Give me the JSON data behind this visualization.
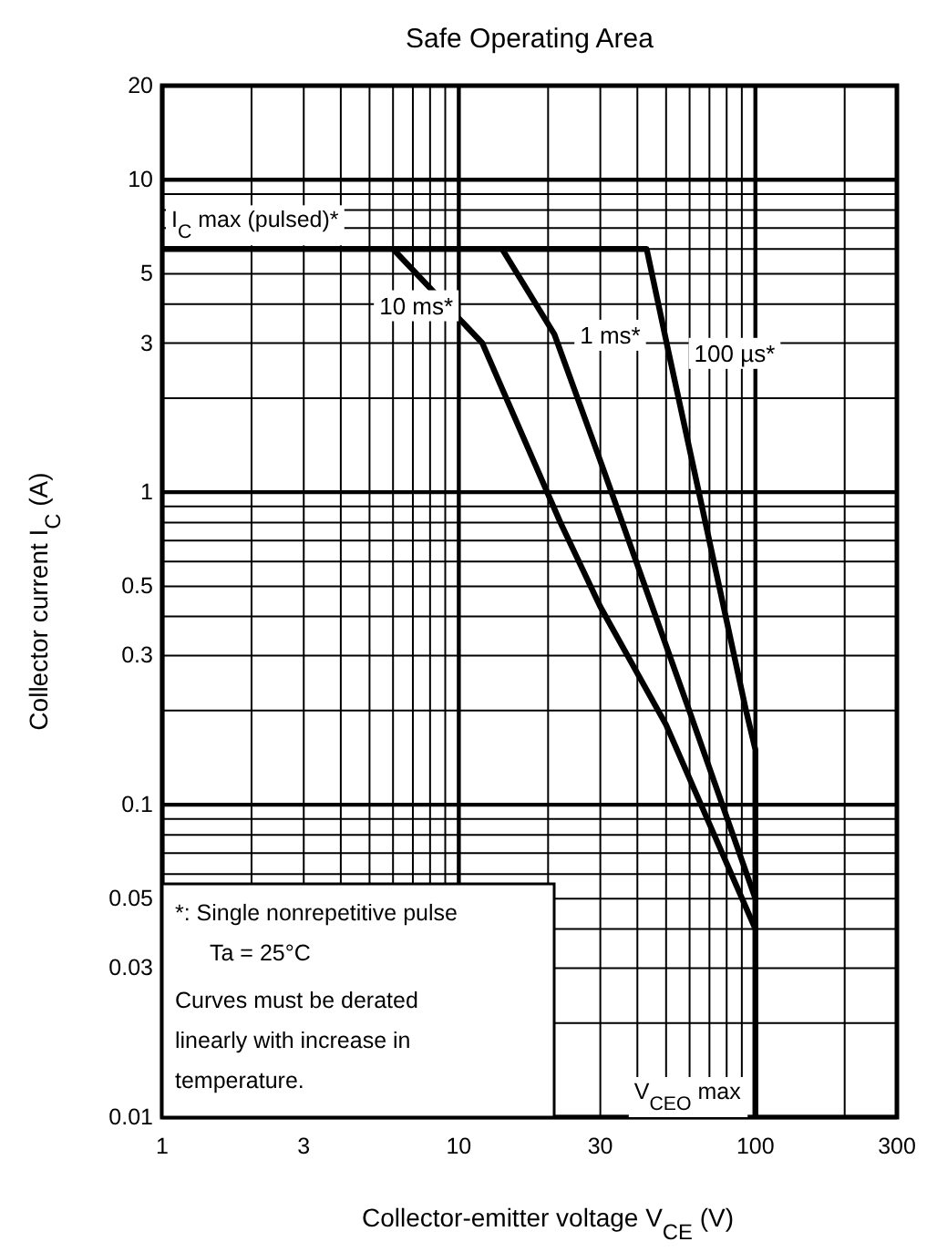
{
  "chart_data": {
    "type": "line",
    "title": "Safe Operating Area",
    "xlabel": "Collector-emitter voltage   V$_{CE}$   (V)",
    "ylabel": "Collector current   I$_{C}$   (A)",
    "log": "xy",
    "grid": true,
    "marker": "none",
    "line_style": "solid",
    "xlim": [
      1,
      300
    ],
    "ylim": [
      0.01,
      20
    ],
    "xticks": [
      1,
      3,
      10,
      30,
      100,
      300
    ],
    "yticks": [
      0.01,
      0.03,
      0.05,
      0.1,
      0.3,
      0.5,
      1,
      3,
      5,
      10,
      20
    ],
    "series": [
      {
        "name": "10 ms*",
        "color": "#000000",
        "x": [
          6,
          12,
          22,
          30,
          50,
          100
        ],
        "values": [
          6,
          3,
          0.8,
          0.43,
          0.18,
          0.04
        ]
      },
      {
        "name": "1 ms*",
        "color": "#000000",
        "x": [
          14,
          21,
          30,
          61,
          100
        ],
        "values": [
          6,
          3.2,
          1.26,
          0.19,
          0.05
        ]
      },
      {
        "name": "100 µs*",
        "color": "#000000",
        "x": [
          1,
          43,
          51,
          93,
          100,
          100
        ],
        "values": [
          6,
          6,
          2.8,
          0.2,
          0.15,
          0.01
        ]
      }
    ],
    "annotations": [
      {
        "text": "I$_{C}$ max (pulsed)*",
        "x": 1,
        "y": 6
      },
      {
        "text": "V$_{CEO}$ max",
        "x": 100,
        "y": 0.01
      },
      "*:  Single nonrepetitive pulse",
      "Ta = 25°C",
      "Curves must be derated linearly with increase in temperature."
    ]
  }
}
